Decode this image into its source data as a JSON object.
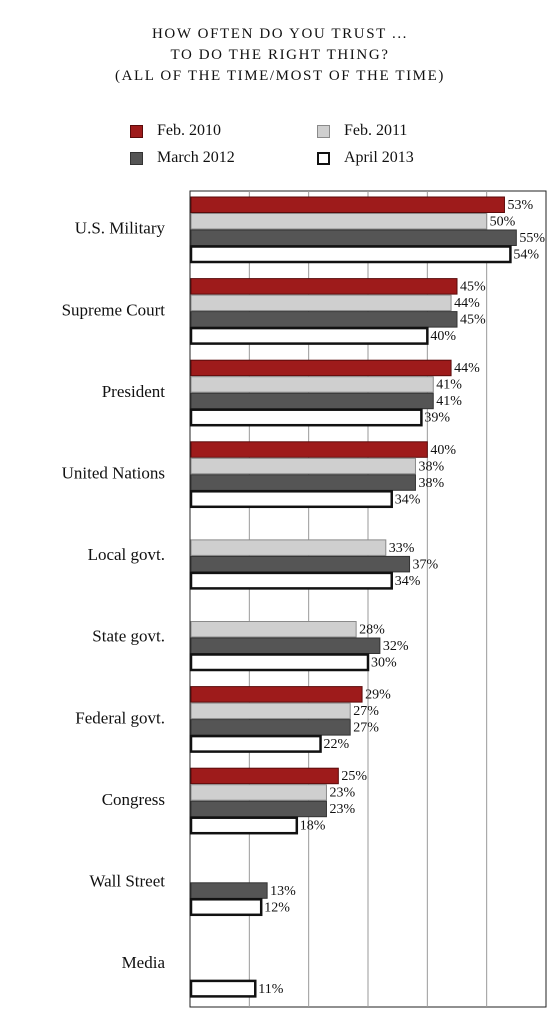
{
  "chart_data": {
    "type": "bar",
    "orientation": "horizontal",
    "title": [
      "HOW OFTEN DO YOU TRUST ...",
      "TO DO THE RIGHT THING?",
      "(ALL OF THE TIME/MOST OF THE TIME)"
    ],
    "xlim": [
      0,
      60
    ],
    "grid": "vertical",
    "legend_position": "top",
    "value_suffix": "%",
    "categories": [
      "U.S. Military",
      "Supreme Court",
      "President",
      "United Nations",
      "Local govt.",
      "State govt.",
      "Federal govt.",
      "Congress",
      "Wall Street",
      "Media"
    ],
    "series": [
      {
        "name": "Feb. 2010",
        "fill": "#9e1b1b",
        "stroke": "#5a0a0a",
        "values": [
          53,
          45,
          44,
          40,
          null,
          null,
          29,
          25,
          null,
          null
        ]
      },
      {
        "name": "Feb. 2011",
        "fill": "#cfcfcf",
        "stroke": "#8a8a8a",
        "values": [
          50,
          44,
          41,
          38,
          33,
          28,
          27,
          23,
          null,
          null
        ]
      },
      {
        "name": "March 2012",
        "fill": "#555555",
        "stroke": "#333333",
        "values": [
          55,
          45,
          41,
          38,
          37,
          32,
          27,
          23,
          13,
          null
        ]
      },
      {
        "name": "April 2013",
        "fill": "#ffffff",
        "stroke": "#111111",
        "values": [
          54,
          40,
          39,
          34,
          34,
          30,
          22,
          18,
          12,
          11
        ]
      }
    ]
  }
}
